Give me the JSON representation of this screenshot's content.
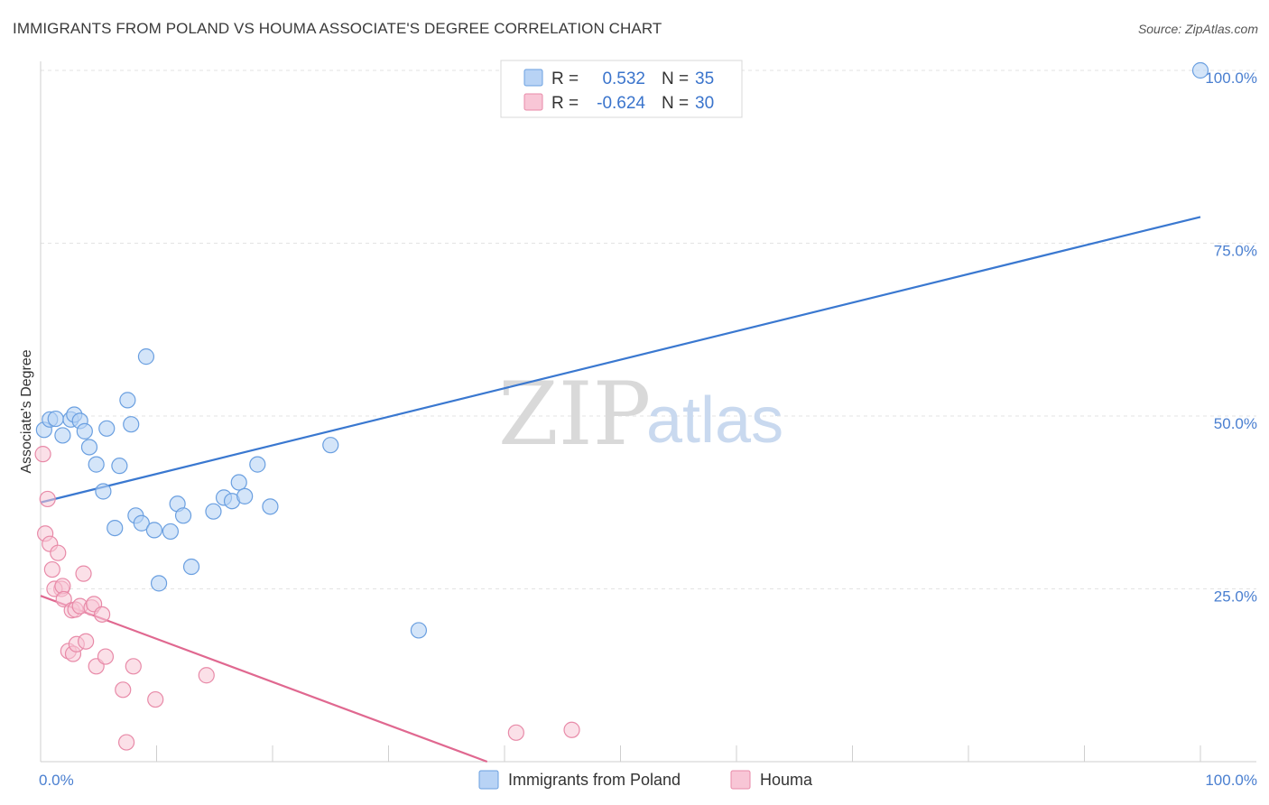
{
  "title": "IMMIGRANTS FROM POLAND VS HOUMA ASSOCIATE'S DEGREE CORRELATION CHART",
  "source": "Source: ZipAtlas.com",
  "watermark": {
    "zip": "ZIP",
    "atlas": "atlas"
  },
  "colors": {
    "poland_fill": "#b8d3f5",
    "poland_stroke": "#6a9fe0",
    "poland_line": "#3a78d0",
    "houma_fill": "#f8c6d6",
    "houma_stroke": "#e88aa8",
    "houma_line": "#e06890"
  },
  "legend": {
    "r_label": "R =",
    "n_label": "N =",
    "rows": [
      {
        "r": "0.532",
        "n": "35"
      },
      {
        "r": "-0.624",
        "n": "30"
      }
    ]
  },
  "chart_data": {
    "type": "scatter",
    "title": "IMMIGRANTS FROM POLAND VS HOUMA ASSOCIATE'S DEGREE CORRELATION CHART",
    "xlabel": "",
    "ylabel": "Associate's Degree",
    "xlim": [
      0,
      100
    ],
    "ylim": [
      0,
      100
    ],
    "x_tick_labels": [
      "0.0%",
      "100.0%"
    ],
    "y_tick_labels": [
      "25.0%",
      "50.0%",
      "75.0%",
      "100.0%"
    ],
    "grid": true,
    "legend_position": "top-center",
    "series": [
      {
        "name": "Immigrants from Poland",
        "r": 0.532,
        "n": 35,
        "trend": {
          "x": [
            0,
            100
          ],
          "y": [
            37.5,
            78.8
          ]
        },
        "points": [
          [
            0.3,
            48.0
          ],
          [
            0.8,
            49.5
          ],
          [
            1.3,
            49.6
          ],
          [
            1.9,
            47.2
          ],
          [
            2.6,
            49.5
          ],
          [
            2.9,
            50.2
          ],
          [
            3.4,
            49.3
          ],
          [
            3.8,
            47.8
          ],
          [
            4.2,
            45.5
          ],
          [
            4.8,
            43.0
          ],
          [
            5.4,
            39.1
          ],
          [
            5.7,
            48.2
          ],
          [
            6.4,
            33.8
          ],
          [
            6.8,
            42.8
          ],
          [
            7.5,
            52.3
          ],
          [
            7.8,
            48.8
          ],
          [
            8.2,
            35.6
          ],
          [
            8.7,
            34.5
          ],
          [
            9.1,
            58.6
          ],
          [
            9.8,
            33.5
          ],
          [
            10.2,
            25.8
          ],
          [
            11.2,
            33.3
          ],
          [
            11.8,
            37.3
          ],
          [
            12.3,
            35.6
          ],
          [
            13.0,
            28.2
          ],
          [
            14.9,
            36.2
          ],
          [
            15.8,
            38.2
          ],
          [
            16.5,
            37.7
          ],
          [
            17.1,
            40.4
          ],
          [
            17.6,
            38.4
          ],
          [
            18.7,
            43.0
          ],
          [
            19.8,
            36.9
          ],
          [
            25.0,
            45.8
          ],
          [
            32.6,
            19.0
          ],
          [
            100.0,
            100.0
          ]
        ]
      },
      {
        "name": "Houma",
        "r": -0.624,
        "n": 30,
        "trend": {
          "x": [
            0,
            38.5
          ],
          "y": [
            24.0,
            0
          ]
        },
        "points": [
          [
            0.2,
            44.5
          ],
          [
            0.6,
            38.0
          ],
          [
            0.4,
            33.0
          ],
          [
            0.8,
            31.5
          ],
          [
            1.0,
            27.8
          ],
          [
            1.5,
            30.2
          ],
          [
            1.8,
            25.0
          ],
          [
            1.2,
            25.0
          ],
          [
            1.9,
            25.4
          ],
          [
            2.0,
            23.5
          ],
          [
            2.4,
            16.0
          ],
          [
            2.8,
            15.6
          ],
          [
            2.7,
            21.9
          ],
          [
            3.0,
            22.0
          ],
          [
            3.1,
            17.0
          ],
          [
            3.4,
            22.5
          ],
          [
            3.7,
            27.2
          ],
          [
            3.9,
            17.4
          ],
          [
            4.4,
            22.3
          ],
          [
            4.6,
            22.8
          ],
          [
            4.8,
            13.8
          ],
          [
            5.3,
            21.3
          ],
          [
            5.6,
            15.2
          ],
          [
            7.1,
            10.4
          ],
          [
            7.4,
            2.8
          ],
          [
            8.0,
            13.8
          ],
          [
            9.9,
            9.0
          ],
          [
            14.3,
            12.5
          ],
          [
            41.0,
            4.2
          ],
          [
            45.8,
            4.6
          ]
        ]
      }
    ]
  }
}
